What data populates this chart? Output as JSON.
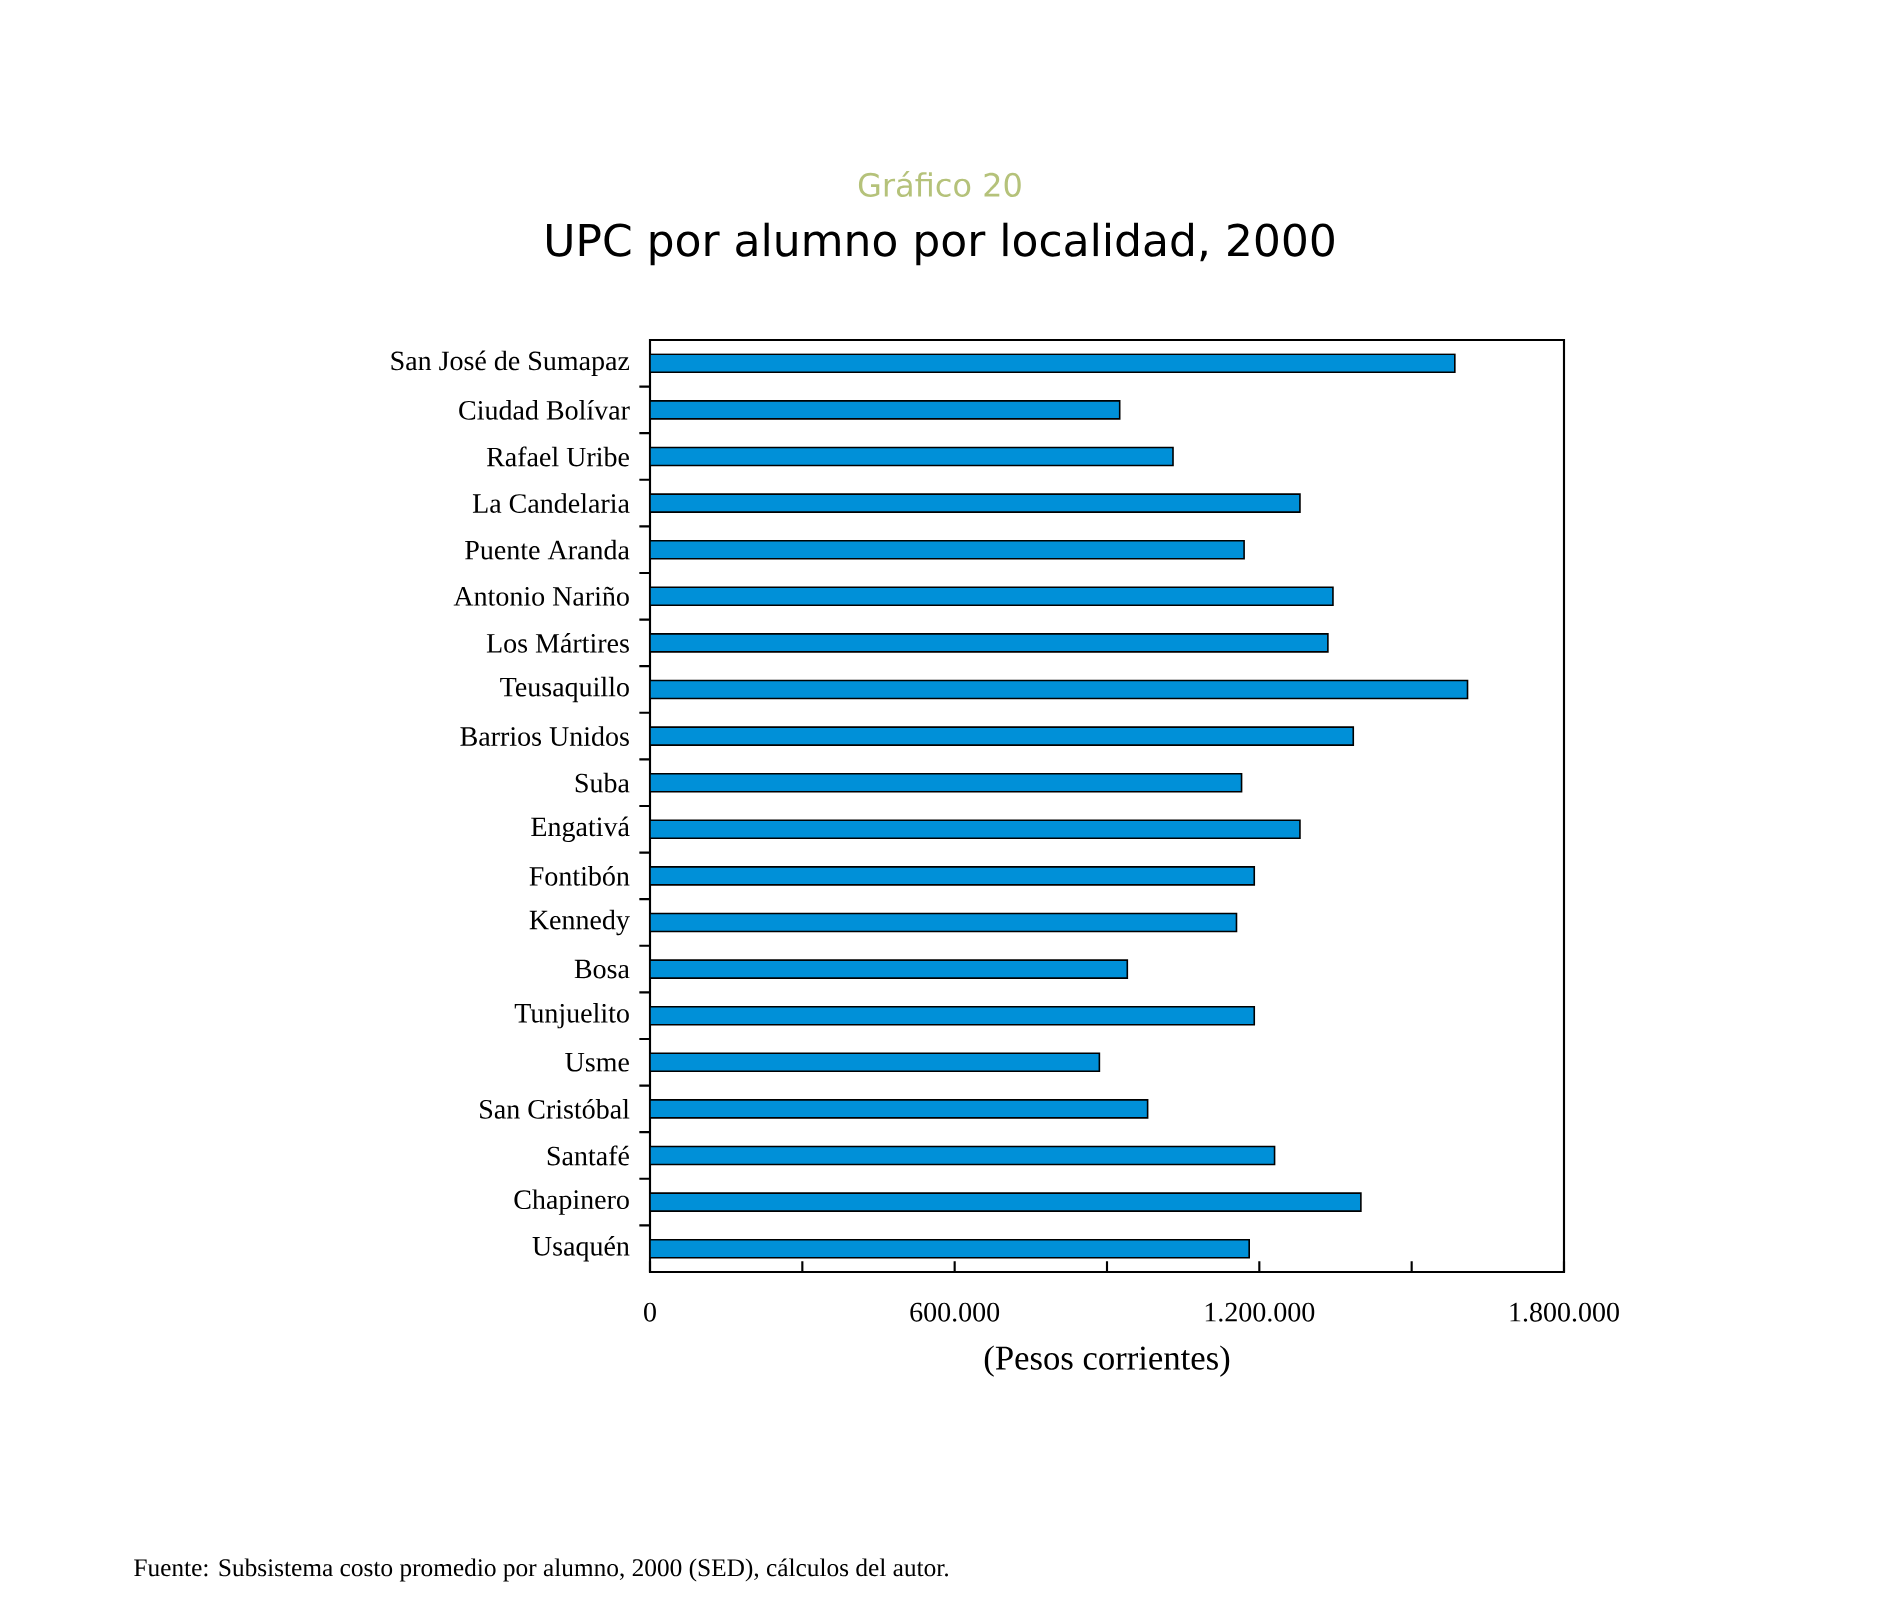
{
  "chart_data": {
    "type": "bar",
    "orientation": "horizontal",
    "title": "UPC por alumno por localidad, 2000",
    "subtitle": "Gráfico 20",
    "xlabel": "(Pesos corrientes)",
    "categories": [
      "San José de Sumapaz",
      "Ciudad Bolívar",
      "Rafael Uribe",
      "La Candelaria",
      "Puente Aranda",
      "Antonio Nariño",
      "Los Mártires",
      "Teusaquillo",
      "Barrios Unidos",
      "Suba",
      "Engativá",
      "Fontibón",
      "Kennedy",
      "Bosa",
      "Tunjuelito",
      "Usme",
      "San Cristóbal",
      "Santafé",
      "Chapinero",
      "Usaquén"
    ],
    "values": [
      1585000,
      925000,
      1030000,
      1280000,
      1170000,
      1345000,
      1335000,
      1610000,
      1385000,
      1165000,
      1280000,
      1190000,
      1155000,
      940000,
      1190000,
      885000,
      980000,
      1230000,
      1400000,
      1180000
    ],
    "color": "#0090d8",
    "xlim": [
      0,
      1800000
    ],
    "xticks": [
      0,
      {
        "value": 300000,
        "label": null
      },
      {
        "value": 600000,
        "label": "600.000"
      },
      {
        "value": 900000,
        "label": null
      },
      {
        "value": 1200000,
        "label": "1.200.000"
      },
      {
        "value": 1500000,
        "label": null
      },
      {
        "value": 1800000,
        "label": "1.800.000"
      }
    ],
    "grid": false,
    "annotations": [
      "Fuente: Subsistema costo promedio por alumno, 2000 (SED), cálculos del autor."
    ]
  }
}
